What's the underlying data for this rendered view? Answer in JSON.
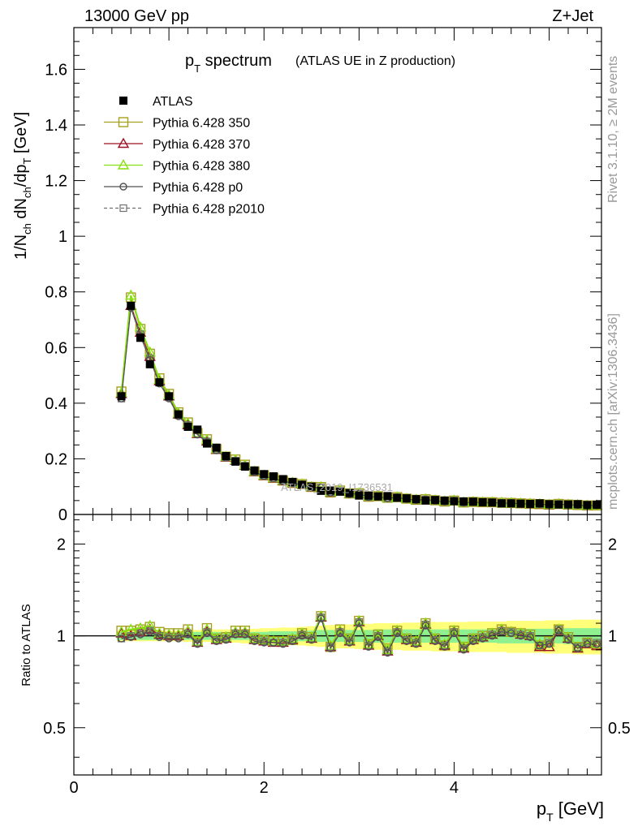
{
  "header": {
    "energy": "13000 GeV pp",
    "process": "Z+Jet"
  },
  "side": {
    "rivet": "Rivet 3.1.10, ≥ 2M events",
    "mcplots": "mcplots.cern.ch [arXiv:1306.3436]"
  },
  "watermark": "ATLAS_2019_I1736531",
  "colors": {
    "atlas": "#000000",
    "p350": "#a7a020",
    "p370": "#9b1020",
    "p380": "#88e010",
    "p0": "#505050",
    "p2010": "#707070",
    "band_outer": "#ffff7a",
    "band_inner": "#8ff08f"
  },
  "chart_data": {
    "type": "line",
    "title_main": "p",
    "title_sub": "T",
    "title_rest": " spectrum",
    "title_paren": "(ATLAS UE in Z production)",
    "ylabel": "1/N_ch dN_ch/dp_T [GeV]",
    "xlabel": "p_T [GeV]",
    "xlim": [
      0,
      5.55
    ],
    "ylim": [
      0,
      1.75
    ],
    "yticks": [
      "0",
      "0.2",
      "0.4",
      "0.6",
      "0.8",
      "1",
      "1.2",
      "1.4",
      "1.6"
    ],
    "xticks": [
      "0",
      "2",
      "4"
    ],
    "ratio_ylabel": "Ratio to ATLAS",
    "ratio_yticks": [
      "0.5",
      "1",
      "2"
    ],
    "ratio_ylim": [
      0.35,
      2.5
    ],
    "legend": [
      {
        "key": "atlas",
        "label": "ATLAS",
        "marker": "filled-square",
        "line": "none"
      },
      {
        "key": "p350",
        "label": "Pythia 6.428 350",
        "marker": "open-square",
        "line": "solid"
      },
      {
        "key": "p370",
        "label": "Pythia 6.428 370",
        "marker": "open-triangle",
        "line": "solid"
      },
      {
        "key": "p380",
        "label": "Pythia 6.428 380",
        "marker": "open-triangle",
        "line": "solid"
      },
      {
        "key": "p0",
        "label": "Pythia 6.428 p0",
        "marker": "open-circle",
        "line": "solid"
      },
      {
        "key": "p2010",
        "label": "Pythia 6.428 p2010",
        "marker": "small-square",
        "line": "dashed"
      }
    ],
    "x": [
      0.5,
      0.6,
      0.7,
      0.8,
      0.9,
      1.0,
      1.1,
      1.2,
      1.3,
      1.4,
      1.5,
      1.6,
      1.7,
      1.8,
      1.9,
      2.0,
      2.1,
      2.2,
      2.3,
      2.4,
      2.5,
      2.6,
      2.7,
      2.8,
      2.9,
      3.0,
      3.1,
      3.2,
      3.3,
      3.4,
      3.5,
      3.6,
      3.7,
      3.8,
      3.9,
      4.0,
      4.1,
      4.2,
      4.3,
      4.4,
      4.5,
      4.6,
      4.7,
      4.8,
      4.9,
      5.0,
      5.1,
      5.2,
      5.3,
      5.4,
      5.5
    ],
    "atlas_values": [
      0.425,
      0.75,
      0.635,
      0.54,
      0.475,
      0.425,
      0.36,
      0.315,
      0.305,
      0.255,
      0.24,
      0.21,
      0.19,
      0.172,
      0.158,
      0.145,
      0.137,
      0.127,
      0.117,
      0.107,
      0.1,
      0.085,
      0.086,
      0.082,
      0.077,
      0.068,
      0.068,
      0.065,
      0.066,
      0.06,
      0.058,
      0.055,
      0.05,
      0.052,
      0.05,
      0.048,
      0.047,
      0.046,
      0.044,
      0.043,
      0.04,
      0.04,
      0.039,
      0.038,
      0.04,
      0.037,
      0.036,
      0.036,
      0.037,
      0.034,
      0.035
    ],
    "ratios": {
      "p350": [
        1.04,
        1.04,
        1.05,
        1.07,
        1.03,
        1.02,
        1.02,
        1.05,
        0.96,
        1.06,
        0.98,
        0.99,
        1.04,
        1.04,
        0.98,
        0.97,
        0.96,
        0.96,
        0.97,
        1.02,
        0.99,
        1.16,
        0.92,
        1.05,
        0.98,
        1.12,
        0.94,
        1.01,
        0.91,
        1.04,
        0.98,
        0.96,
        1.1,
        0.98,
        0.93,
        1.04,
        0.92,
        0.98,
        1.0,
        1.02,
        1.05,
        1.03,
        1.02,
        1.01,
        0.93,
        0.96,
        1.05,
        0.99,
        0.92,
        0.95,
        0.93
      ],
      "p370": [
        1.02,
        1.0,
        1.03,
        1.05,
        1.01,
        1.0,
        1.0,
        1.02,
        0.95,
        1.03,
        0.97,
        0.98,
        1.02,
        1.02,
        0.97,
        0.96,
        0.95,
        0.95,
        0.97,
        1.01,
        0.98,
        1.15,
        0.92,
        1.03,
        0.96,
        1.11,
        0.93,
        1.0,
        0.89,
        1.03,
        0.97,
        0.95,
        1.09,
        0.97,
        0.93,
        1.03,
        0.91,
        0.97,
        0.99,
        1.01,
        1.04,
        1.03,
        1.01,
        1.0,
        0.92,
        0.92,
        1.04,
        0.98,
        0.91,
        0.94,
        0.93
      ],
      "p380": [
        1.03,
        1.05,
        1.06,
        1.08,
        1.02,
        1.01,
        1.01,
        1.04,
        0.96,
        1.05,
        0.98,
        0.99,
        1.03,
        1.03,
        0.98,
        0.97,
        0.96,
        0.96,
        0.98,
        1.02,
        0.99,
        1.16,
        0.93,
        1.04,
        0.97,
        1.12,
        0.94,
        1.01,
        0.9,
        1.04,
        0.98,
        0.96,
        1.1,
        0.98,
        0.94,
        1.04,
        0.92,
        0.98,
        1.0,
        1.02,
        1.05,
        1.03,
        1.02,
        1.01,
        0.94,
        0.95,
        1.05,
        0.99,
        0.92,
        0.95,
        0.94
      ],
      "p0": [
        0.98,
        0.99,
        1.01,
        1.03,
        0.99,
        0.98,
        0.98,
        1.01,
        0.94,
        1.02,
        0.96,
        0.97,
        1.01,
        1.01,
        0.96,
        0.95,
        0.95,
        0.94,
        0.96,
        1.0,
        0.97,
        1.14,
        0.91,
        1.02,
        0.95,
        1.1,
        0.92,
        0.99,
        0.88,
        1.02,
        0.96,
        0.94,
        1.08,
        0.96,
        0.92,
        1.02,
        0.9,
        0.96,
        0.98,
        1.0,
        1.03,
        1.02,
        1.0,
        0.99,
        0.93,
        0.94,
        1.04,
        0.97,
        0.91,
        0.94,
        0.94
      ],
      "p2010": [
        0.98,
        1.0,
        1.02,
        1.04,
        1.0,
        0.99,
        0.99,
        1.02,
        0.95,
        1.03,
        0.97,
        0.98,
        1.02,
        1.02,
        0.97,
        0.96,
        0.95,
        0.95,
        0.97,
        1.01,
        0.98,
        1.15,
        0.92,
        1.03,
        0.96,
        1.11,
        0.93,
        1.0,
        0.89,
        1.03,
        0.97,
        0.95,
        1.09,
        0.97,
        0.93,
        1.03,
        0.91,
        0.97,
        0.99,
        1.01,
        1.04,
        1.03,
        1.01,
        1.0,
        0.93,
        0.95,
        1.05,
        0.98,
        0.92,
        0.95,
        0.95
      ]
    },
    "band_inner": [
      0.03,
      0.03,
      0.03,
      0.03,
      0.03,
      0.03,
      0.03,
      0.03,
      0.03,
      0.03,
      0.03,
      0.03,
      0.03,
      0.03,
      0.03,
      0.03,
      0.035,
      0.035,
      0.035,
      0.04,
      0.04,
      0.045,
      0.045,
      0.045,
      0.045,
      0.045,
      0.045,
      0.05,
      0.05,
      0.05,
      0.05,
      0.05,
      0.05,
      0.05,
      0.05,
      0.05,
      0.05,
      0.05,
      0.05,
      0.05,
      0.055,
      0.055,
      0.055,
      0.055,
      0.055,
      0.055,
      0.055,
      0.06,
      0.06,
      0.06,
      0.06
    ],
    "band_outer": [
      0.04,
      0.04,
      0.04,
      0.04,
      0.04,
      0.04,
      0.04,
      0.045,
      0.045,
      0.045,
      0.05,
      0.05,
      0.05,
      0.055,
      0.055,
      0.06,
      0.06,
      0.065,
      0.065,
      0.07,
      0.075,
      0.08,
      0.085,
      0.09,
      0.09,
      0.095,
      0.095,
      0.1,
      0.1,
      0.1,
      0.105,
      0.105,
      0.105,
      0.11,
      0.11,
      0.11,
      0.11,
      0.115,
      0.115,
      0.115,
      0.115,
      0.12,
      0.12,
      0.12,
      0.12,
      0.125,
      0.125,
      0.125,
      0.13,
      0.13,
      0.13
    ]
  }
}
